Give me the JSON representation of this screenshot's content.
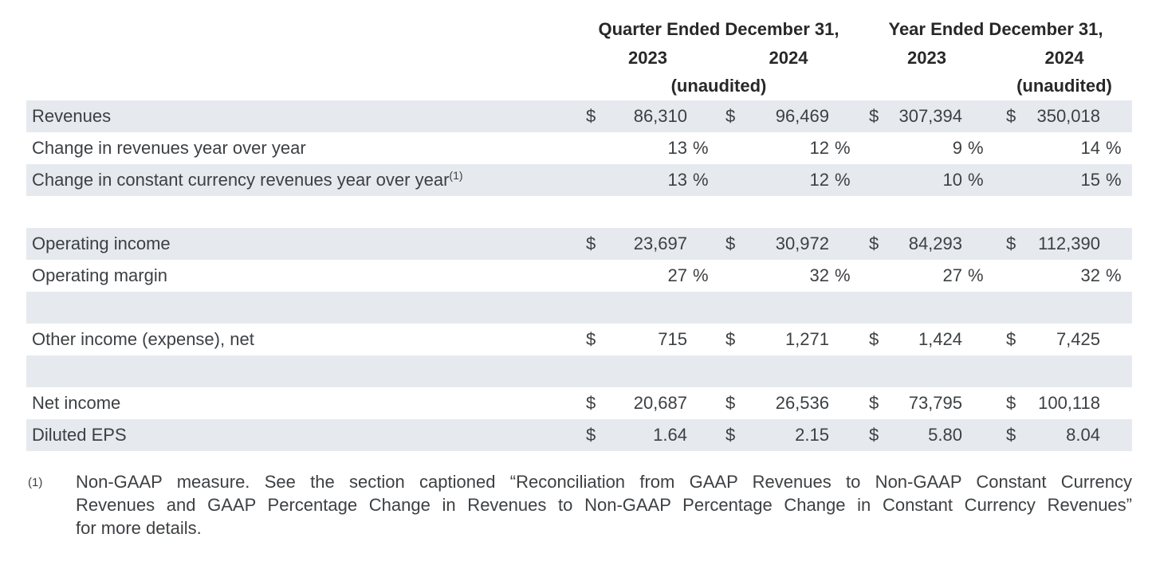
{
  "colors": {
    "row_shade": "#e6eaee",
    "body_text": "#3d4043",
    "header_text": "#282828",
    "background": "#ffffff"
  },
  "header": {
    "quarter_title": "Quarter Ended December 31,",
    "year_title": "Year Ended December 31,",
    "columns": [
      "2023",
      "2024",
      "2023",
      "2024"
    ],
    "unaudited_quarter": "(unaudited)",
    "unaudited_year": "(unaudited)"
  },
  "table": {
    "rows": [
      {
        "label": "Revenues",
        "shaded": true,
        "cells": [
          {
            "cur": "$",
            "val": "86,310",
            "pct": ""
          },
          {
            "cur": "$",
            "val": "96,469",
            "pct": ""
          },
          {
            "cur": "$",
            "val": "307,394",
            "pct": ""
          },
          {
            "cur": "$",
            "val": "350,018",
            "pct": ""
          }
        ]
      },
      {
        "label": "Change in revenues year over year",
        "shaded": false,
        "cells": [
          {
            "cur": "",
            "val": "13",
            "pct": "%"
          },
          {
            "cur": "",
            "val": "12",
            "pct": "%"
          },
          {
            "cur": "",
            "val": "9",
            "pct": "%"
          },
          {
            "cur": "",
            "val": "14",
            "pct": "%"
          }
        ]
      },
      {
        "label": "Change in constant currency revenues year over year",
        "sup": "(1)",
        "shaded": true,
        "cells": [
          {
            "cur": "",
            "val": "13",
            "pct": "%"
          },
          {
            "cur": "",
            "val": "12",
            "pct": "%"
          },
          {
            "cur": "",
            "val": "10",
            "pct": "%"
          },
          {
            "cur": "",
            "val": "15",
            "pct": "%"
          }
        ]
      },
      {
        "label": "",
        "shaded": false,
        "cells": [
          {
            "cur": "",
            "val": "",
            "pct": ""
          },
          {
            "cur": "",
            "val": "",
            "pct": ""
          },
          {
            "cur": "",
            "val": "",
            "pct": ""
          },
          {
            "cur": "",
            "val": "",
            "pct": ""
          }
        ]
      },
      {
        "label": "Operating income",
        "shaded": true,
        "cells": [
          {
            "cur": "$",
            "val": "23,697",
            "pct": ""
          },
          {
            "cur": "$",
            "val": "30,972",
            "pct": ""
          },
          {
            "cur": "$",
            "val": "84,293",
            "pct": ""
          },
          {
            "cur": "$",
            "val": "112,390",
            "pct": ""
          }
        ]
      },
      {
        "label": "Operating margin",
        "shaded": false,
        "cells": [
          {
            "cur": "",
            "val": "27",
            "pct": "%"
          },
          {
            "cur": "",
            "val": "32",
            "pct": "%"
          },
          {
            "cur": "",
            "val": "27",
            "pct": "%"
          },
          {
            "cur": "",
            "val": "32",
            "pct": "%"
          }
        ]
      },
      {
        "label": "",
        "shaded": true,
        "cells": [
          {
            "cur": "",
            "val": "",
            "pct": ""
          },
          {
            "cur": "",
            "val": "",
            "pct": ""
          },
          {
            "cur": "",
            "val": "",
            "pct": ""
          },
          {
            "cur": "",
            "val": "",
            "pct": ""
          }
        ]
      },
      {
        "label": "Other income (expense), net",
        "shaded": false,
        "cells": [
          {
            "cur": "$",
            "val": "715",
            "pct": ""
          },
          {
            "cur": "$",
            "val": "1,271",
            "pct": ""
          },
          {
            "cur": "$",
            "val": "1,424",
            "pct": ""
          },
          {
            "cur": "$",
            "val": "7,425",
            "pct": ""
          }
        ]
      },
      {
        "label": "",
        "shaded": true,
        "cells": [
          {
            "cur": "",
            "val": "",
            "pct": ""
          },
          {
            "cur": "",
            "val": "",
            "pct": ""
          },
          {
            "cur": "",
            "val": "",
            "pct": ""
          },
          {
            "cur": "",
            "val": "",
            "pct": ""
          }
        ]
      },
      {
        "label": "Net income",
        "shaded": false,
        "cells": [
          {
            "cur": "$",
            "val": "20,687",
            "pct": ""
          },
          {
            "cur": "$",
            "val": "26,536",
            "pct": ""
          },
          {
            "cur": "$",
            "val": "73,795",
            "pct": ""
          },
          {
            "cur": "$",
            "val": "100,118",
            "pct": ""
          }
        ]
      },
      {
        "label": "Diluted EPS",
        "shaded": true,
        "cells": [
          {
            "cur": "$",
            "val": "1.64",
            "pct": ""
          },
          {
            "cur": "$",
            "val": "2.15",
            "pct": ""
          },
          {
            "cur": "$",
            "val": "5.80",
            "pct": ""
          },
          {
            "cur": "$",
            "val": "8.04",
            "pct": ""
          }
        ]
      }
    ]
  },
  "footnote": {
    "marker": "(1)",
    "lines": [
      "Non-GAAP measure. See the section captioned “Reconciliation from GAAP Revenues to Non-GAAP Constant Currency",
      "Revenues and GAAP Percentage Change in Revenues to Non-GAAP Percentage Change in Constant Currency Revenues”",
      "for more details."
    ]
  }
}
